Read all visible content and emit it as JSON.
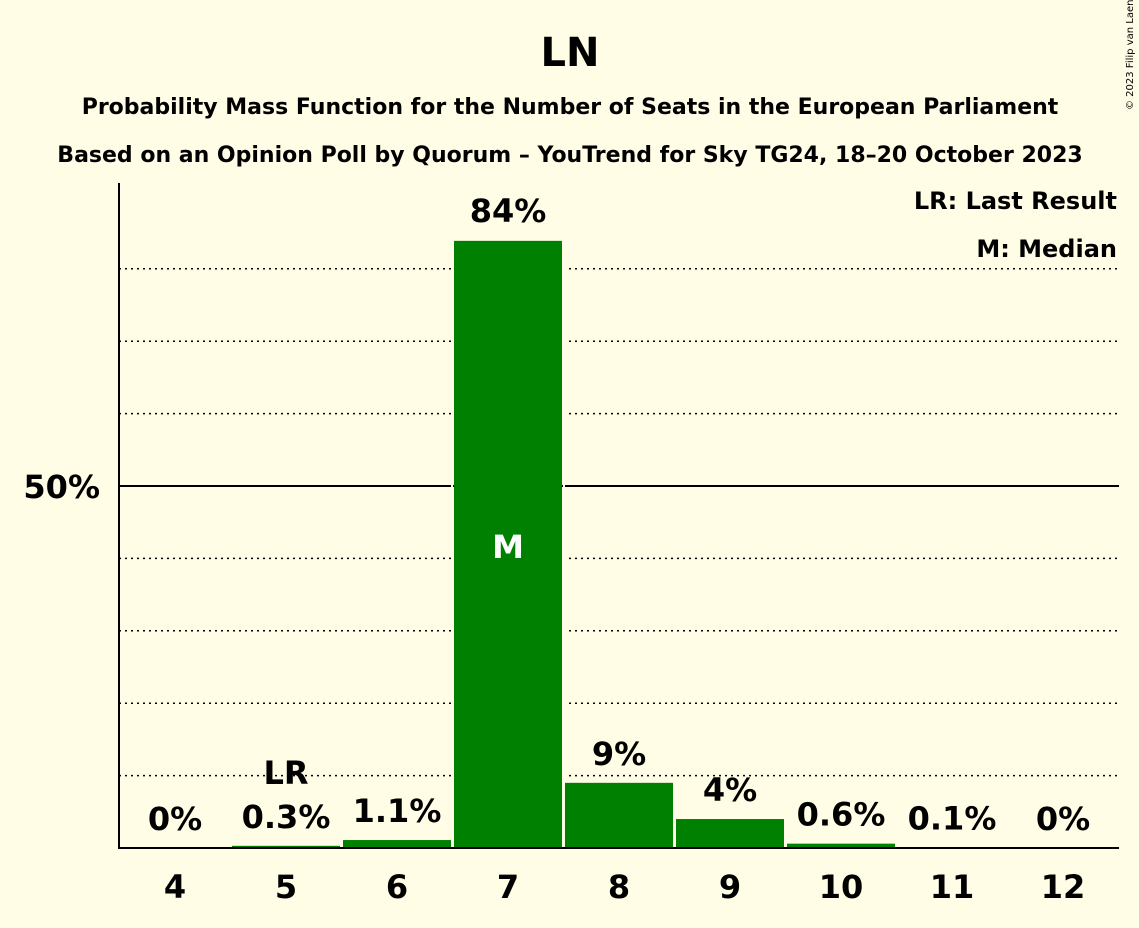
{
  "chart_data": {
    "type": "bar",
    "title": "LN",
    "subtitle": "Probability Mass Function for the Number of Seats in the European Parliament",
    "subtitle2": "Based on an Opinion Poll by Quorum – YouTrend for Sky TG24, 18–20 October 2023",
    "copyright": "© 2023 Filip van Laenen",
    "categories": [
      "4",
      "5",
      "6",
      "7",
      "8",
      "9",
      "10",
      "11",
      "12"
    ],
    "values": [
      0,
      0.3,
      1.1,
      84,
      9,
      4,
      0.6,
      0.1,
      0
    ],
    "value_labels": [
      "0%",
      "0.3%",
      "1.1%",
      "84%",
      "9%",
      "4%",
      "0.6%",
      "0.1%",
      "0%"
    ],
    "last_result_category": "5",
    "last_result_marker": "LR",
    "median_category": "7",
    "median_marker": "M",
    "ylim": [
      0,
      92
    ],
    "yticks": [
      {
        "value": 50,
        "label": "50%"
      }
    ],
    "minor_gridlines": [
      10,
      20,
      30,
      40,
      60,
      70,
      80
    ],
    "legend": {
      "position": "top-right",
      "entries": [
        "LR: Last Result",
        "M: Median"
      ]
    },
    "bar_color": "#008000",
    "background_color": "#fffde6"
  }
}
